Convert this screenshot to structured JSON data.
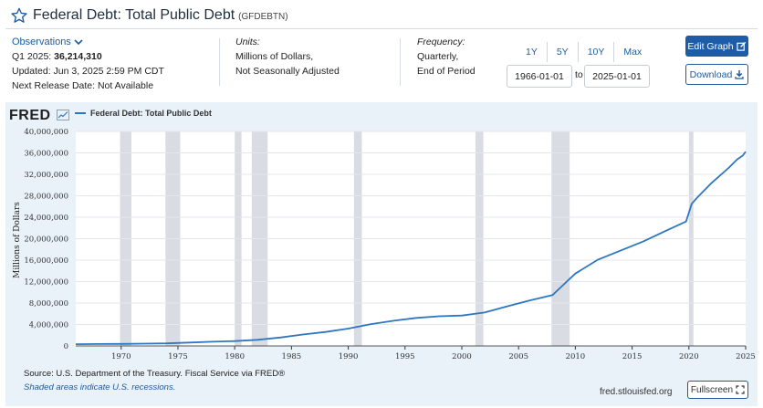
{
  "header": {
    "title": "Federal Debt: Total Public Debt",
    "series_id": "(GFDEBTN)"
  },
  "observations": {
    "toggle_label": "Observations",
    "latest_period": "Q1 2025:",
    "latest_value": "36,214,310",
    "updated": "Updated: Jun 3, 2025 2:59 PM CDT",
    "next_release": "Next Release Date: Not Available"
  },
  "units": {
    "label": "Units:",
    "line1": "Millions of Dollars,",
    "line2": "Not Seasonally Adjusted"
  },
  "frequency": {
    "label": "Frequency:",
    "line1": "Quarterly,",
    "line2": "End of Period"
  },
  "range": {
    "buttons": [
      "1Y",
      "5Y",
      "10Y",
      "Max"
    ],
    "start": "1966-01-01",
    "to_label": "to",
    "end": "2025-01-01"
  },
  "actions": {
    "edit_label": "Edit Graph",
    "download_label": "Download",
    "fullscreen_label": "Fullscreen"
  },
  "chart_header": {
    "logo": "FRED",
    "legend": "Federal Debt: Total Public Debt"
  },
  "footer": {
    "source": "Source: U.S. Department of the Treasury. Fiscal Service via FRED®",
    "shade_note": "Shaded areas indicate U.S. recessions.",
    "site": "fred.stlouisfed.org"
  },
  "colors": {
    "line": "#2f76c2",
    "panel": "#e9f1f9",
    "recession": "#d9dce2",
    "accent": "#1c5ca8"
  },
  "icons": {
    "star": "star-outline-icon",
    "chevron": "chevron-down-icon",
    "edit": "edit-icon",
    "download": "download-icon",
    "fullscreen": "fullscreen-icon",
    "trend": "trend-icon"
  },
  "chart_data": {
    "type": "line",
    "xlabel": "",
    "ylabel": "Millions of Dollars",
    "xlim": [
      1966,
      2025
    ],
    "ylim": [
      0,
      40000000
    ],
    "x_ticks": [
      "1970",
      "1975",
      "1980",
      "1985",
      "1990",
      "1995",
      "2000",
      "2005",
      "2010",
      "2015",
      "2020",
      "2025"
    ],
    "y_ticks": [
      "0",
      "4,000,000",
      "8,000,000",
      "12,000,000",
      "16,000,000",
      "20,000,000",
      "24,000,000",
      "28,000,000",
      "32,000,000",
      "36,000,000",
      "40,000,000"
    ],
    "grid": true,
    "recessions": [
      [
        1969.9,
        1970.9
      ],
      [
        1973.9,
        1975.2
      ],
      [
        1980.0,
        1980.6
      ],
      [
        1981.5,
        1982.9
      ],
      [
        1990.5,
        1991.2
      ],
      [
        2001.2,
        2001.9
      ],
      [
        2007.9,
        2009.5
      ],
      [
        2020.0,
        2020.4
      ]
    ],
    "series": [
      {
        "name": "Federal Debt: Total Public Debt",
        "x": [
          1966,
          1968,
          1970,
          1972,
          1974,
          1976,
          1978,
          1980,
          1982,
          1984,
          1986,
          1988,
          1990,
          1992,
          1994,
          1996,
          1998,
          2000,
          2002,
          2004,
          2006,
          2008,
          2008.75,
          2010,
          2012,
          2014,
          2016,
          2018,
          2019.75,
          2020.25,
          2020.75,
          2022,
          2023.5,
          2024.25,
          2024.75,
          2025
        ],
        "y": [
          320000,
          350000,
          380000,
          430000,
          480000,
          630000,
          780000,
          910000,
          1140000,
          1570000,
          2120000,
          2600000,
          3230000,
          4060000,
          4690000,
          5220000,
          5530000,
          5670000,
          6230000,
          7380000,
          8500000,
          9500000,
          11000000,
          13500000,
          16100000,
          17800000,
          19500000,
          21500000,
          23200000,
          26500000,
          27700000,
          30400000,
          33200000,
          34800000,
          35500000,
          36214310
        ]
      }
    ]
  }
}
